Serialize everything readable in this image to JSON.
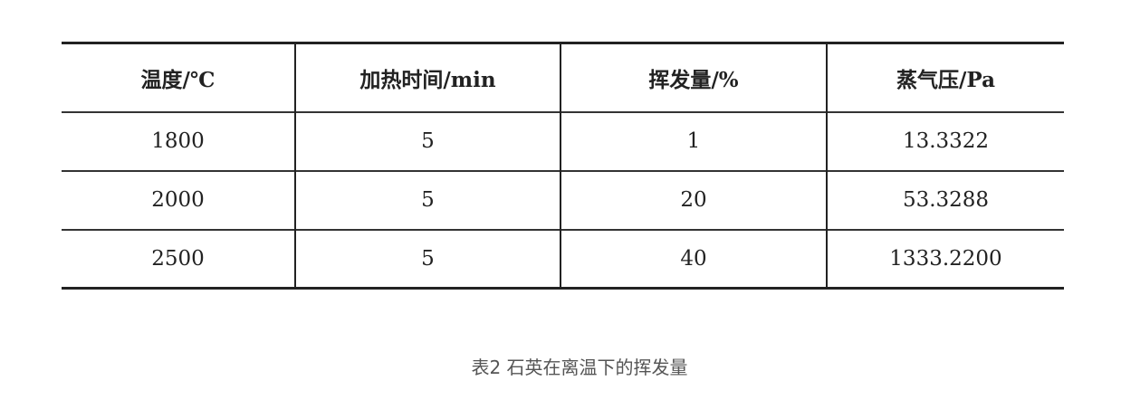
{
  "table": {
    "headers": [
      "温度/℃",
      "加热时间/min",
      "挥发量/%",
      "蒸气压/Pa"
    ],
    "rows": [
      [
        "1800",
        "5",
        "1",
        "13.3322"
      ],
      [
        "2000",
        "5",
        "20",
        "53.3288"
      ],
      [
        "2500",
        "5",
        "40",
        "1333.2200"
      ]
    ]
  },
  "caption": "表2 石英在离温下的挥发量"
}
